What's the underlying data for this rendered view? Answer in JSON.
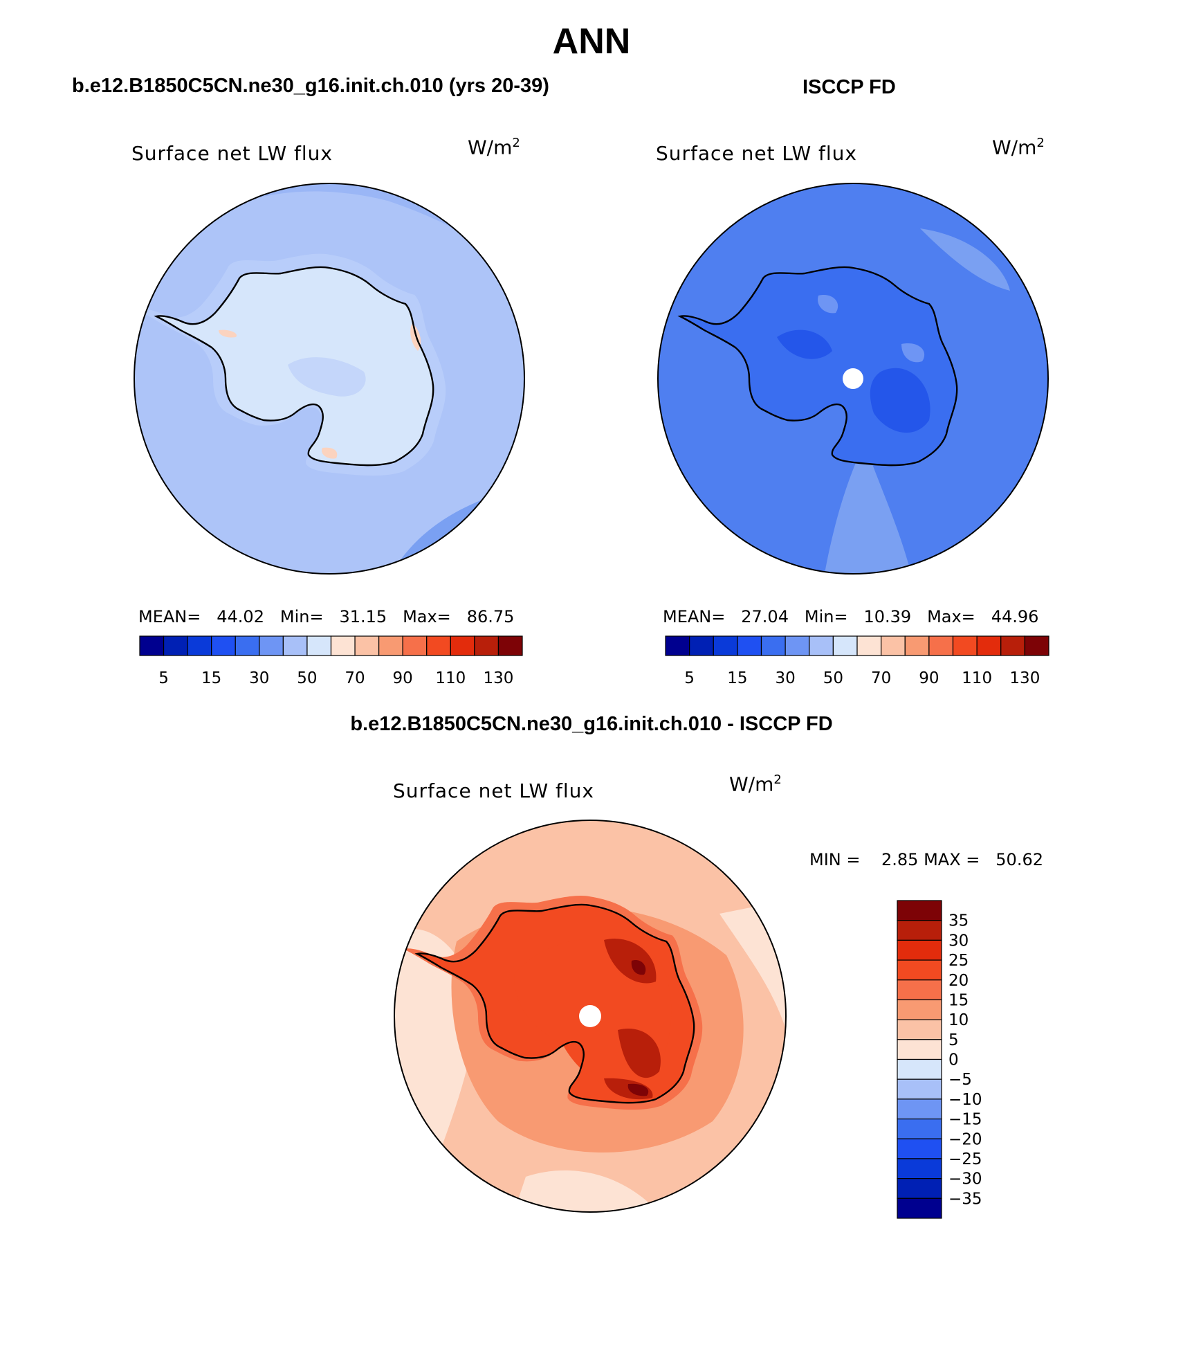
{
  "figure": {
    "season": "ANN"
  },
  "panels": {
    "model": {
      "title": "b.e12.B1850C5CN.ne30_g16.init.ch.010 (yrs 20-39)",
      "variable": "Surface net LW flux",
      "units_base": "W/m",
      "units_exp": "2",
      "stats": {
        "mean_label": "MEAN=",
        "mean": "44.02",
        "min_label": "Min=",
        "min": "31.15",
        "max_label": "Max=",
        "max": "86.75"
      }
    },
    "obs": {
      "title": "ISCCP FD",
      "variable": "Surface net LW flux",
      "units_base": "W/m",
      "units_exp": "2",
      "stats": {
        "mean_label": "MEAN=",
        "mean": "27.04",
        "min_label": "Min=",
        "min": "10.39",
        "max_label": "Max=",
        "max": "44.96"
      }
    },
    "diff": {
      "title": "b.e12.B1850C5CN.ne30_g16.init.ch.010 - ISCCP FD",
      "variable": "Surface net LW flux",
      "units_base": "W/m",
      "units_exp": "2",
      "stats": {
        "min_label": "MIN =",
        "min": "2.85",
        "max_label": "MAX =",
        "max": "50.62"
      }
    }
  },
  "colorbars": {
    "absolute": {
      "colors": [
        "#00008f",
        "#0020b4",
        "#0a3ad9",
        "#1f50f2",
        "#3a6ef0",
        "#6e95f4",
        "#a8c0f8",
        "#d6e6fb",
        "#fde3d4",
        "#fbc2a6",
        "#f89a72",
        "#f6704a",
        "#f24a21",
        "#e32c0c",
        "#b81f0a",
        "#7d0306"
      ],
      "tick_labels": [
        "5",
        "15",
        "30",
        "50",
        "70",
        "90",
        "110",
        "130"
      ]
    },
    "difference": {
      "colors": [
        "#7d0306",
        "#b81f0a",
        "#e32c0c",
        "#f24a21",
        "#f6704a",
        "#f89a72",
        "#fbc2a6",
        "#fde3d4",
        "#d6e6fb",
        "#a8c0f8",
        "#6e95f4",
        "#3a6ef0",
        "#1f50f2",
        "#0a3ad9",
        "#0020b4",
        "#00008f"
      ],
      "tick_labels": [
        "35",
        "30",
        "25",
        "20",
        "15",
        "10",
        "5",
        "0",
        "−5",
        "−10",
        "−15",
        "−20",
        "−25",
        "−30",
        "−35"
      ]
    }
  },
  "map_colors": {
    "model": {
      "ocean": "#adc4f8",
      "ocean_band": "#9ab6f6",
      "ocean_dark": "#7aa0f2",
      "ice_edge": "#b8cdfa",
      "continent": "#d6e6fb",
      "continent_mid": "#c4d6fa",
      "warm_spot": "#fbd3bf"
    },
    "obs": {
      "ocean": "#4f7ff0",
      "ocean_light": "#7aa0f2",
      "continent": "#3a6ef0",
      "continent_dark": "#2456ea",
      "continent_light": "#6e95f4"
    },
    "diff": {
      "ocean": "#fbc2a6",
      "ocean_pale": "#fde3d4",
      "ocean_mid": "#f89a72",
      "continent": "#f6704a",
      "continent_hot": "#f24a21",
      "continent_max": "#b81f0a",
      "continent_core": "#7d0306"
    }
  }
}
